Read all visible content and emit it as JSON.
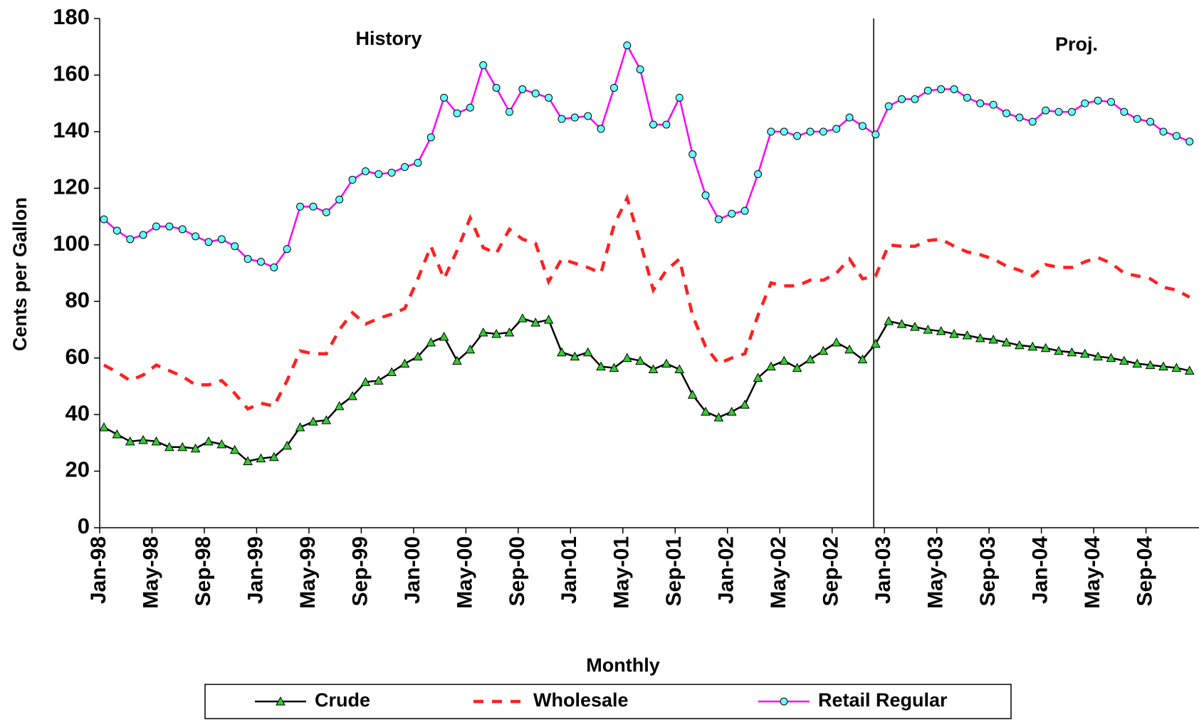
{
  "chart_data": {
    "type": "line",
    "annotations": [
      "History",
      "Proj."
    ],
    "y_label": "Cents per Gallon",
    "x_label": "Monthly",
    "ylim": [
      0,
      180
    ],
    "yticks": [
      0,
      20,
      40,
      60,
      80,
      100,
      120,
      140,
      160,
      180
    ],
    "grid": false,
    "legend": "bottom",
    "categories": [
      "Jan-98",
      null,
      null,
      null,
      "May-98",
      null,
      null,
      null,
      "Sep-98",
      null,
      null,
      null,
      "Jan-99",
      null,
      null,
      null,
      "May-99",
      null,
      null,
      null,
      "Sep-99",
      null,
      null,
      null,
      "Jan-00",
      null,
      null,
      null,
      "May-00",
      null,
      null,
      null,
      "Sep-00",
      null,
      null,
      null,
      "Jan-01",
      null,
      null,
      null,
      "May-01",
      null,
      null,
      null,
      "Sep-01",
      null,
      null,
      null,
      "Jan-02",
      null,
      null,
      null,
      "May-02",
      null,
      null,
      null,
      "Sep-02",
      null,
      null,
      null,
      "Jan-03",
      null,
      null,
      null,
      "May-03",
      null,
      null,
      null,
      "Sep-03",
      null,
      null,
      null,
      "Jan-04",
      null,
      null,
      null,
      "May-04",
      null,
      null,
      null,
      "Sep-04",
      null,
      null,
      null
    ],
    "series": [
      {
        "name": "Crude",
        "color": "#000000",
        "marker": "triangle",
        "marker_color": "#33cc33",
        "dashed": false,
        "values": [
          35.5,
          33,
          30.5,
          31,
          30.5,
          28.5,
          28.5,
          28,
          30.5,
          29.5,
          27.5,
          23.5,
          24.5,
          25,
          29,
          35.5,
          37.5,
          38,
          43,
          46.5,
          51.5,
          52,
          55,
          58,
          60.5,
          65.5,
          67.5,
          59,
          63,
          69,
          68.5,
          69,
          74,
          72.5,
          73.5,
          62,
          60.5,
          62,
          57,
          56.5,
          60,
          59,
          56,
          58,
          56,
          47,
          41,
          39,
          41,
          43.5,
          53,
          57,
          59,
          56.5,
          59.5,
          62.5,
          65.5,
          63,
          59.5,
          65,
          73,
          72,
          71,
          70,
          69.5,
          68.5,
          68,
          67,
          66.5,
          65.5,
          64.5,
          64,
          63.5,
          62.5,
          62,
          61.5,
          60.5,
          60,
          59,
          58,
          57.5,
          57,
          56.5,
          55.5
        ]
      },
      {
        "name": "Wholesale",
        "color": "#ff2020",
        "marker": null,
        "dashed": true,
        "values": [
          57.5,
          55,
          52,
          54,
          57.5,
          55.5,
          53.5,
          50.5,
          50.5,
          52,
          47.5,
          42,
          44,
          43,
          52,
          62.5,
          61.5,
          61.5,
          70,
          76,
          72,
          74,
          75.5,
          77.5,
          88,
          99.5,
          88,
          98,
          109.5,
          99,
          97,
          105.5,
          102,
          100.5,
          87,
          95,
          93.5,
          92,
          90,
          107,
          116.5,
          101,
          84,
          91,
          95,
          75,
          64,
          58,
          60,
          61.5,
          75,
          86.5,
          85.5,
          85.5,
          87.5,
          87.5,
          90,
          95,
          88,
          89,
          100,
          99.5,
          99.5,
          101.5,
          102,
          99.5,
          97.5,
          96.5,
          95,
          92.5,
          91,
          89,
          93,
          92,
          92,
          94,
          95.5,
          93.5,
          90,
          89,
          88,
          85,
          84,
          81.5
        ]
      },
      {
        "name": "Retail Regular",
        "color": "#ff00ff",
        "marker": "circle",
        "marker_color": "#66ffff",
        "dashed": false,
        "values": [
          109,
          105,
          102,
          103.5,
          106.5,
          106.5,
          105.5,
          103,
          101,
          102,
          99.5,
          95,
          94,
          92,
          98.5,
          113.5,
          113.5,
          111.5,
          116,
          123,
          126,
          125,
          125.5,
          127.5,
          129,
          138,
          152,
          146.5,
          148.5,
          163.5,
          155.5,
          147,
          155,
          153.5,
          152,
          144.5,
          145,
          145.5,
          141,
          155.5,
          170.5,
          162,
          142.5,
          142.5,
          152,
          132,
          117.5,
          109,
          111,
          112,
          125,
          140,
          140,
          138.5,
          140,
          140,
          141,
          145,
          142,
          139,
          149,
          151.5,
          151.5,
          154.5,
          155,
          155,
          152,
          150,
          149.5,
          146.5,
          145,
          143.5,
          147.5,
          147,
          147,
          150,
          151,
          150.5,
          147,
          144.5,
          143.5,
          140,
          138.5,
          136.5
        ]
      }
    ]
  }
}
